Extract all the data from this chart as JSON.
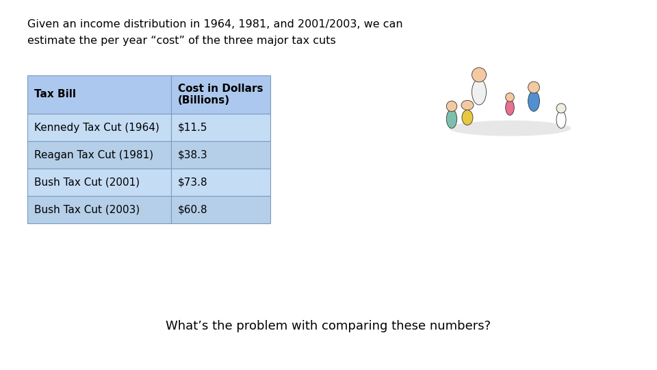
{
  "title_line1": "Given an income distribution in 1964, 1981, and 2001/2003, we can",
  "title_line2": "estimate the per year “cost” of the three major tax cuts",
  "table_headers": [
    "Tax Bill",
    "Cost in Dollars\n(Billions)"
  ],
  "table_rows": [
    [
      "Kennedy Tax Cut (1964)",
      "$11.5"
    ],
    [
      "Reagan Tax Cut (1981)",
      "$38.3"
    ],
    [
      "Bush Tax Cut (2001)",
      "$73.8"
    ],
    [
      "Bush Tax Cut (2003)",
      "$60.8"
    ]
  ],
  "footer_text": "What’s the problem with comparing these numbers?",
  "bg_color": "#ffffff",
  "table_header_bg": "#adc8ee",
  "table_row_bg_even": "#c5dcf5",
  "table_row_bg_odd": "#b5cfe8",
  "table_border_color": "#7a9abf",
  "title_fontsize": 11.5,
  "table_fontsize": 11,
  "header_fontsize": 11,
  "footer_fontsize": 13
}
